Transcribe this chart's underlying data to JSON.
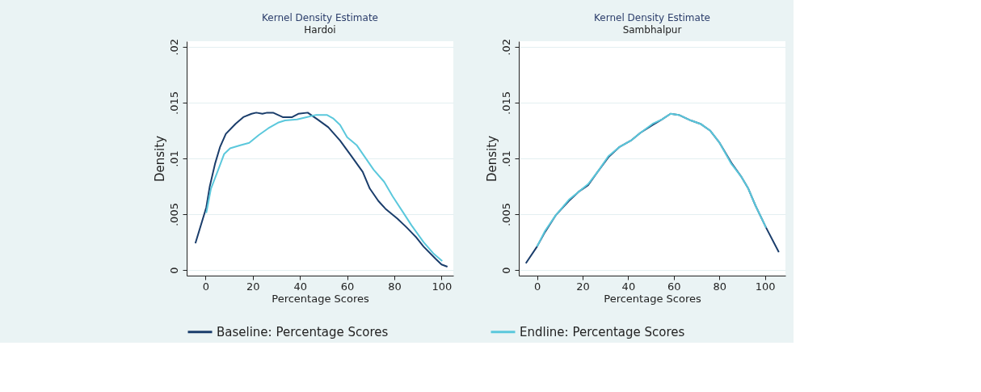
{
  "chart_data": [
    {
      "type": "line",
      "title": "Kernel Density Estimate",
      "subtitle": "Hardoi",
      "xlabel": "Percentage Scores",
      "ylabel": "Density",
      "xlim": [
        -8,
        105
      ],
      "ylim": [
        -0.0005,
        0.0205
      ],
      "xticks": [
        0,
        20,
        40,
        60,
        80,
        100
      ],
      "yticks": [
        0,
        {
          "value": 0.005,
          "label": ".005"
        },
        {
          "value": 0.01,
          "label": ".01"
        },
        {
          "value": 0.015,
          "label": ".015"
        },
        {
          "value": 0.02,
          "label": ".02"
        }
      ],
      "grid": "y",
      "legend": "bottom",
      "line_style": "solid",
      "marker": "none",
      "series": [
        {
          "name": "Baseline: Percentage Scores",
          "color": "#1a3d6b",
          "x": [
            -4.3,
            0.3,
            1.8,
            4.0,
            6.1,
            8.6,
            12.7,
            16.0,
            19.5,
            21.5,
            24.1,
            26.1,
            28.6,
            32.7,
            36.7,
            39.3,
            43.3,
            47.4,
            52,
            57,
            61.5,
            66.6,
            69.6,
            73.2,
            76.2,
            81.3,
            85.3,
            89.4,
            92.4,
            97.5,
            100,
            102.5
          ],
          "values": [
            0.0024,
            0.0056,
            0.0075,
            0.0095,
            0.011,
            0.0122,
            0.0131,
            0.0137,
            0.014,
            0.0141,
            0.014,
            0.0141,
            0.0141,
            0.0137,
            0.0137,
            0.014,
            0.0141,
            0.0135,
            0.0128,
            0.0116,
            0.0103,
            0.0088,
            0.0073,
            0.0062,
            0.0055,
            0.0046,
            0.0038,
            0.0029,
            0.0021,
            0.001,
            0.0005,
            0.0003
          ]
        },
        {
          "name": "Endline: Percentage Scores",
          "color": "#5bc8dc",
          "x": [
            0.3,
            2.3,
            5.4,
            7.9,
            10.4,
            15.0,
            18.5,
            22.6,
            26.6,
            30.7,
            33.7,
            38.8,
            42.8,
            46.9,
            51.4,
            54,
            57,
            60,
            64,
            67.6,
            71.2,
            75.7,
            79.3,
            83.3,
            87.3,
            92.4,
            96.5,
            100.3
          ],
          "values": [
            0.0051,
            0.0073,
            0.009,
            0.0104,
            0.0109,
            0.0112,
            0.0114,
            0.0121,
            0.0127,
            0.0132,
            0.0134,
            0.0135,
            0.0137,
            0.0139,
            0.0139,
            0.0136,
            0.013,
            0.0119,
            0.0112,
            0.0101,
            0.009,
            0.0079,
            0.0066,
            0.0053,
            0.004,
            0.0025,
            0.0015,
            0.0008
          ]
        }
      ]
    },
    {
      "type": "line",
      "title": "Kernel Density Estimate",
      "subtitle": "Sambhalpur",
      "xlabel": "Percentage Scores",
      "ylabel": "Density",
      "xlim": [
        -8,
        109
      ],
      "ylim": [
        -0.0005,
        0.0205
      ],
      "xticks": [
        0,
        20,
        40,
        60,
        80,
        100
      ],
      "yticks": [
        0,
        {
          "value": 0.005,
          "label": ".005"
        },
        {
          "value": 0.01,
          "label": ".01"
        },
        {
          "value": 0.015,
          "label": ".015"
        },
        {
          "value": 0.02,
          "label": ".02"
        }
      ],
      "grid": "y",
      "line_style": "solid",
      "marker": "none",
      "series": [
        {
          "name": "Baseline: Percentage Scores",
          "color": "#1a3d6b",
          "x": [
            -4.9,
            0,
            3.5,
            8.2,
            14.0,
            18.2,
            22.4,
            26.6,
            31.3,
            36.0,
            41.2,
            45.4,
            50.7,
            54.9,
            58.6,
            62.2,
            67.5,
            71.7,
            75.9,
            80.1,
            85.3,
            89.5,
            92.7,
            95.8,
            100.5,
            106.1
          ],
          "values": [
            0.0006,
            0.0021,
            0.0034,
            0.0049,
            0.0062,
            0.007,
            0.0076,
            0.0088,
            0.0101,
            0.011,
            0.0116,
            0.0123,
            0.013,
            0.0135,
            0.014,
            0.0139,
            0.0134,
            0.0131,
            0.0125,
            0.0114,
            0.0096,
            0.0084,
            0.0073,
            0.0058,
            0.0038,
            0.0016
          ]
        },
        {
          "name": "Endline: Percentage Scores",
          "color": "#5bc8dc",
          "x": [
            0,
            3.5,
            8.2,
            14.0,
            18.2,
            22.4,
            26.6,
            31.3,
            36.0,
            41.2,
            45.4,
            50.7,
            54.9,
            58.6,
            62.2,
            67.5,
            71.7,
            75.9,
            80.1,
            85.3,
            89.5,
            92.7,
            95.8,
            100.5
          ],
          "values": [
            0.0021,
            0.0035,
            0.0049,
            0.0063,
            0.007,
            0.0077,
            0.0088,
            0.0102,
            0.011,
            0.0116,
            0.0123,
            0.0131,
            0.0135,
            0.014,
            0.0139,
            0.0134,
            0.0131,
            0.0125,
            0.0114,
            0.0095,
            0.0084,
            0.0073,
            0.0058,
            0.0038
          ]
        }
      ]
    }
  ]
}
